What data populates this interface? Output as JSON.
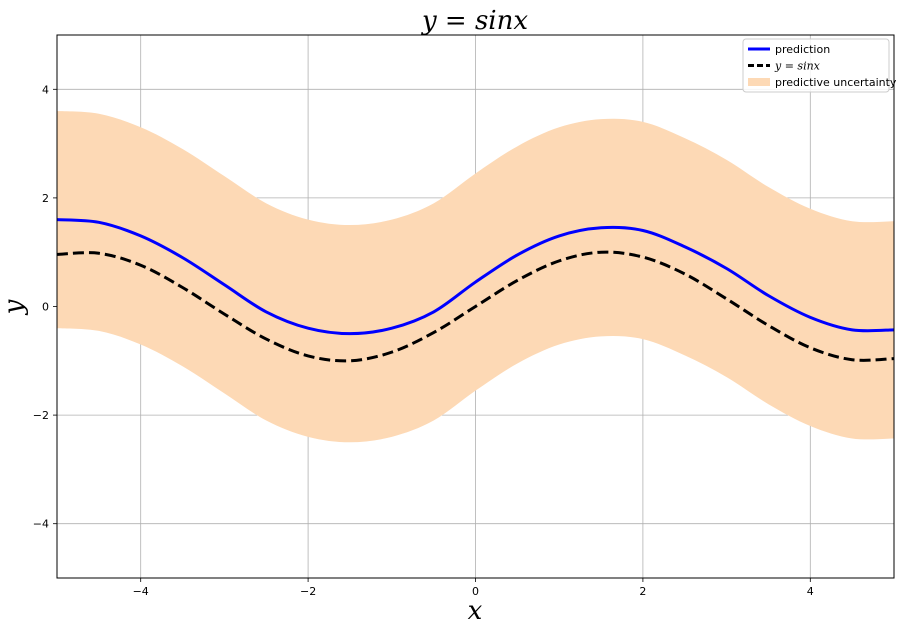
{
  "chart_data": {
    "type": "line",
    "title": "y = sinx",
    "xlabel": "x",
    "ylabel": "y",
    "xlim": [
      -5,
      5
    ],
    "ylim": [
      -5,
      5
    ],
    "xticks": [
      -4,
      -2,
      0,
      2,
      4
    ],
    "yticks": [
      -4,
      -2,
      0,
      2,
      4
    ],
    "xtick_labels": [
      "−4",
      "−2",
      "0",
      "2",
      "4"
    ],
    "ytick_labels": [
      "−4",
      "−2",
      "0",
      "2",
      "4"
    ],
    "grid": true,
    "legend_position": "top-right",
    "series": [
      {
        "name": "prediction",
        "style": "solid",
        "color": "#0000ff",
        "x": [
          -5,
          -4.5,
          -4,
          -3.5,
          -3,
          -2.5,
          -2,
          -1.5,
          -1,
          -0.5,
          0,
          0.5,
          1,
          1.5,
          2,
          2.5,
          3,
          3.5,
          4,
          4.5,
          5
        ],
        "values": [
          1.6,
          1.55,
          1.3,
          0.9,
          0.4,
          -0.1,
          -0.4,
          -0.5,
          -0.4,
          -0.1,
          0.45,
          0.95,
          1.3,
          1.45,
          1.4,
          1.1,
          0.7,
          0.2,
          -0.2,
          -0.43,
          -0.43
        ]
      },
      {
        "name": "y = sinx",
        "style": "dashed",
        "color": "#000000",
        "x": [
          -5,
          -4.5,
          -4,
          -3.5,
          -3,
          -2.5,
          -2,
          -1.5,
          -1,
          -0.5,
          0,
          0.5,
          1,
          1.5,
          2,
          2.5,
          3,
          3.5,
          4,
          4.5,
          5
        ],
        "values": [
          0.96,
          0.98,
          0.76,
          0.35,
          -0.14,
          -0.6,
          -0.91,
          -1.0,
          -0.84,
          -0.48,
          0.0,
          0.48,
          0.84,
          1.0,
          0.91,
          0.6,
          0.14,
          -0.35,
          -0.76,
          -0.98,
          -0.96
        ]
      }
    ],
    "uncertainty_band": {
      "name": "predictive uncertainty",
      "color": "#fdd9b5",
      "x": [
        -5,
        -4.5,
        -4,
        -3.5,
        -3,
        -2.5,
        -2,
        -1.5,
        -1,
        -0.5,
        0,
        0.5,
        1,
        1.5,
        2,
        2.5,
        3,
        3.5,
        4,
        4.5,
        5
      ],
      "upper": [
        3.6,
        3.55,
        3.3,
        2.9,
        2.4,
        1.9,
        1.6,
        1.5,
        1.6,
        1.9,
        2.45,
        2.95,
        3.3,
        3.45,
        3.4,
        3.1,
        2.7,
        2.2,
        1.8,
        1.57,
        1.57
      ],
      "lower": [
        -0.4,
        -0.45,
        -0.7,
        -1.1,
        -1.6,
        -2.1,
        -2.4,
        -2.5,
        -2.4,
        -2.1,
        -1.55,
        -1.05,
        -0.7,
        -0.55,
        -0.6,
        -0.9,
        -1.3,
        -1.8,
        -2.2,
        -2.43,
        -2.43
      ]
    },
    "legend": {
      "items": [
        {
          "label": "prediction",
          "kind": "line-solid",
          "color": "#0000ff"
        },
        {
          "label": "y = sinx",
          "kind": "line-dashed",
          "color": "#000000"
        },
        {
          "label": "predictive uncertainty",
          "kind": "patch",
          "color": "#fdd9b5"
        }
      ]
    }
  }
}
